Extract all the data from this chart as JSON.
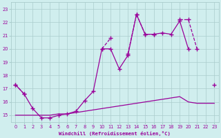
{
  "xlabel": "Windchill (Refroidissement éolien,°C)",
  "x": [
    0,
    1,
    2,
    3,
    4,
    5,
    6,
    7,
    8,
    9,
    10,
    11,
    12,
    13,
    14,
    15,
    16,
    17,
    18,
    19,
    20,
    21,
    22,
    23
  ],
  "line1_y": [
    17.3,
    16.6,
    15.5,
    14.8,
    14.8,
    15.0,
    15.1,
    15.3,
    16.1,
    16.8,
    20.0,
    20.0,
    18.5,
    19.5,
    22.6,
    21.1,
    21.1,
    21.2,
    21.1,
    22.1,
    20.0,
    null,
    null,
    null
  ],
  "line2_y": [
    17.3,
    16.6,
    null,
    null,
    null,
    null,
    null,
    null,
    null,
    null,
    20.0,
    20.8,
    null,
    19.6,
    22.6,
    21.1,
    21.1,
    null,
    null,
    22.2,
    22.2,
    20.0,
    null,
    17.3
  ],
  "line3_y": [
    15.0,
    15.0,
    15.0,
    15.0,
    15.0,
    15.1,
    15.1,
    15.2,
    15.3,
    15.4,
    15.5,
    15.6,
    15.7,
    15.8,
    15.9,
    16.0,
    16.1,
    16.2,
    16.3,
    16.4,
    16.0,
    15.9,
    15.9,
    15.9
  ],
  "color": "#990099",
  "bg_color": "#d0eeee",
  "grid_color": "#aacccc",
  "ylim": [
    14.5,
    23.5
  ],
  "xlim": [
    -0.5,
    23.5
  ],
  "yticks": [
    15,
    16,
    17,
    18,
    19,
    20,
    21,
    22,
    23
  ],
  "xticks": [
    0,
    1,
    2,
    3,
    4,
    5,
    6,
    7,
    8,
    9,
    10,
    11,
    12,
    13,
    14,
    15,
    16,
    17,
    18,
    19,
    20,
    21,
    22,
    23
  ]
}
